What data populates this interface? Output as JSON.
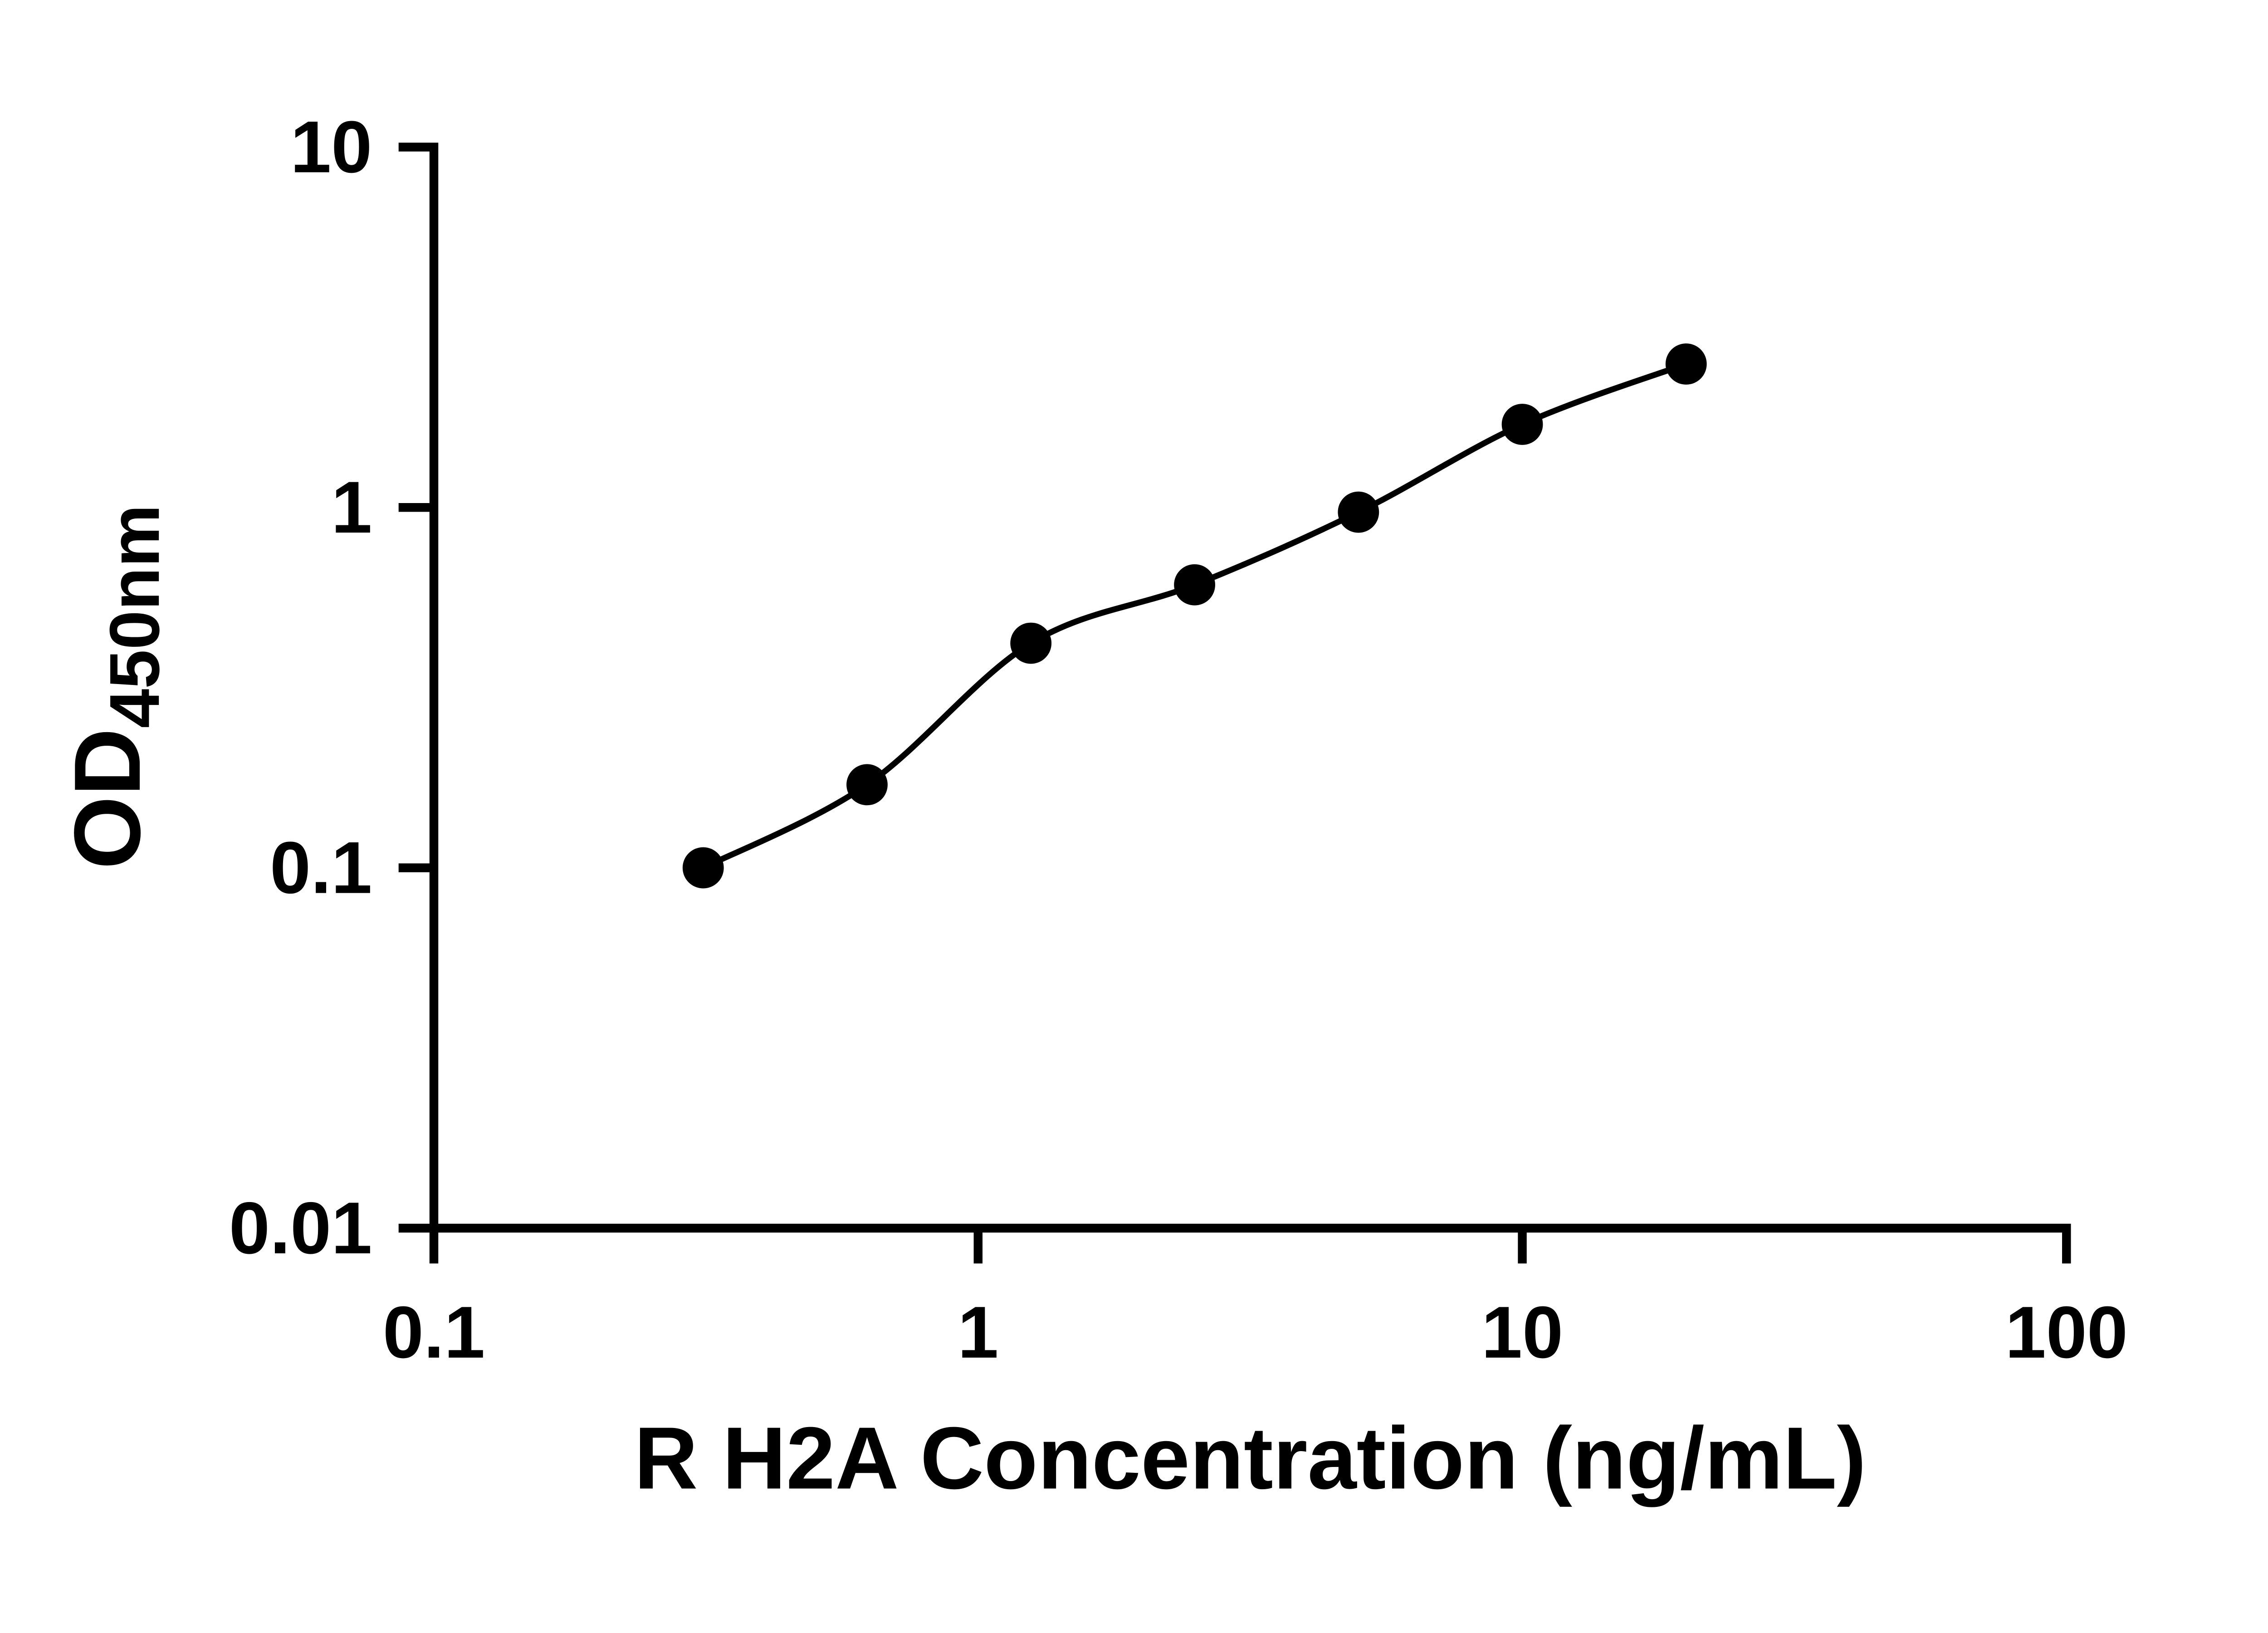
{
  "chart_data": {
    "type": "scatter",
    "x": [
      0.3125,
      0.625,
      1.25,
      2.5,
      5,
      10,
      20
    ],
    "y": [
      0.1,
      0.17,
      0.42,
      0.61,
      0.97,
      1.7,
      2.5
    ],
    "has_fit_curve": true,
    "title": "",
    "xlabel": "R H2A Concentration (ng/mL)",
    "ylabel_main": "OD",
    "ylabel_sub": "450nm",
    "x_scale": "log",
    "y_scale": "log",
    "xlim": [
      0.1,
      100
    ],
    "ylim": [
      0.01,
      10
    ],
    "x_ticks": [
      0.1,
      1,
      10,
      100
    ],
    "x_tick_labels": [
      "0.1",
      "1",
      "10",
      "100"
    ],
    "y_ticks": [
      0.01,
      0.1,
      1,
      10
    ],
    "y_tick_labels": [
      "0.01",
      "0.1",
      "1",
      "10"
    ],
    "grid": false,
    "legend": null,
    "marker_color": "#000000",
    "line_color": "#000000",
    "axis_color": "#000000",
    "background": "#ffffff"
  }
}
